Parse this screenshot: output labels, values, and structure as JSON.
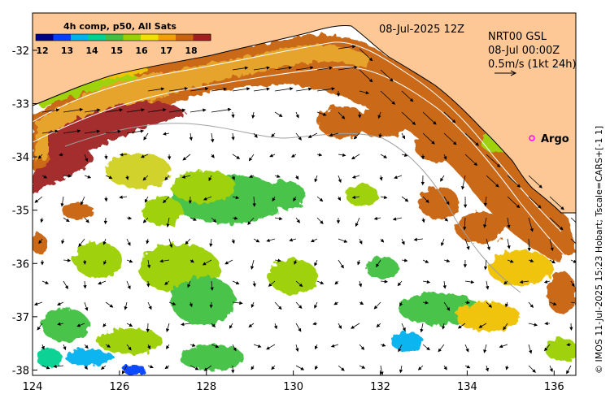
{
  "colorbar": {
    "title": "4h comp, p50, All Sats",
    "ticks": [
      "12",
      "13",
      "14",
      "15",
      "16",
      "17",
      "18"
    ],
    "colors": [
      "#00008b",
      "#0040ff",
      "#00b0f0",
      "#00d090",
      "#40c040",
      "#9ad000",
      "#f0e000",
      "#f0a000",
      "#c86410",
      "#a02020"
    ]
  },
  "header": {
    "date": "08-Jul-2025 12Z",
    "product": "NRT00 GSL",
    "current_time": "08-Jul 00:00Z",
    "vector_scale": "0.5m/s (1kt 24h)"
  },
  "argo": {
    "label": "Argo",
    "marker_color": "#ff00ff"
  },
  "credit": "© IMOS 11-Jul-2025 15:23 Hobart; Tscale=CARS+[-1 1]",
  "axes": {
    "x_ticks": [
      "124",
      "126",
      "128",
      "130",
      "132",
      "134",
      "136"
    ],
    "y_ticks": [
      "-32",
      "-33",
      "-34",
      "-35",
      "-36",
      "-37",
      "-38"
    ],
    "x_range": [
      124,
      136.5
    ],
    "y_range": [
      -38.1,
      -31.3
    ]
  },
  "colors": {
    "land": "#fdc896",
    "ocean": "#ffffff",
    "coastline": "#000000",
    "vectors": "#000000"
  }
}
